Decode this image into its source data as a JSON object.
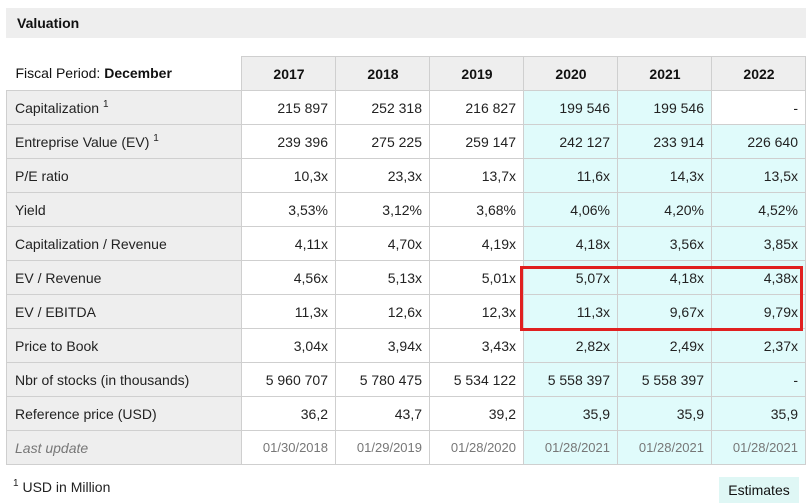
{
  "title": "Valuation",
  "fiscal_period_label": "Fiscal Period:",
  "fiscal_period_value": "December",
  "years": [
    "2017",
    "2018",
    "2019",
    "2020",
    "2021",
    "2022"
  ],
  "rows": [
    {
      "label": "Capitalization",
      "sup": "1",
      "values": [
        "215 897",
        "252 318",
        "216 827",
        "199 546",
        "199 546",
        "-"
      ]
    },
    {
      "label": "Entreprise Value (EV)",
      "sup": "1",
      "values": [
        "239 396",
        "275 225",
        "259 147",
        "242 127",
        "233 914",
        "226 640"
      ]
    },
    {
      "label": "P/E ratio",
      "values": [
        "10,3x",
        "23,3x",
        "13,7x",
        "11,6x",
        "14,3x",
        "13,5x"
      ]
    },
    {
      "label": "Yield",
      "values": [
        "3,53%",
        "3,12%",
        "3,68%",
        "4,06%",
        "4,20%",
        "4,52%"
      ]
    },
    {
      "label": "Capitalization / Revenue",
      "values": [
        "4,11x",
        "4,70x",
        "4,19x",
        "4,18x",
        "3,56x",
        "3,85x"
      ]
    },
    {
      "label": "EV / Revenue",
      "values": [
        "4,56x",
        "5,13x",
        "5,01x",
        "5,07x",
        "4,18x",
        "4,38x"
      ]
    },
    {
      "label": "EV / EBITDA",
      "values": [
        "11,3x",
        "12,6x",
        "12,3x",
        "11,3x",
        "9,67x",
        "9,79x"
      ]
    },
    {
      "label": "Price to Book",
      "values": [
        "3,04x",
        "3,94x",
        "3,43x",
        "2,82x",
        "2,49x",
        "2,37x"
      ]
    },
    {
      "label": "Nbr of stocks (in thousands)",
      "values": [
        "5 960 707",
        "5 780 475",
        "5 534 122",
        "5 558 397",
        "5 558 397",
        "-"
      ]
    },
    {
      "label": "Reference price (USD)",
      "values": [
        "36,2",
        "43,7",
        "39,2",
        "35,9",
        "35,9",
        "35,9"
      ]
    },
    {
      "label": "Last update",
      "values": [
        "01/30/2018",
        "01/29/2019",
        "01/28/2020",
        "01/28/2021",
        "01/28/2021",
        "01/28/2021"
      ]
    }
  ],
  "footnote_sup": "1",
  "footnote_text": "USD in Million",
  "estimates_label": "Estimates",
  "colors": {
    "estimate_bg": "#e0fbfb",
    "highlight_border": "#e02020",
    "header_bg": "#eeeeee"
  }
}
